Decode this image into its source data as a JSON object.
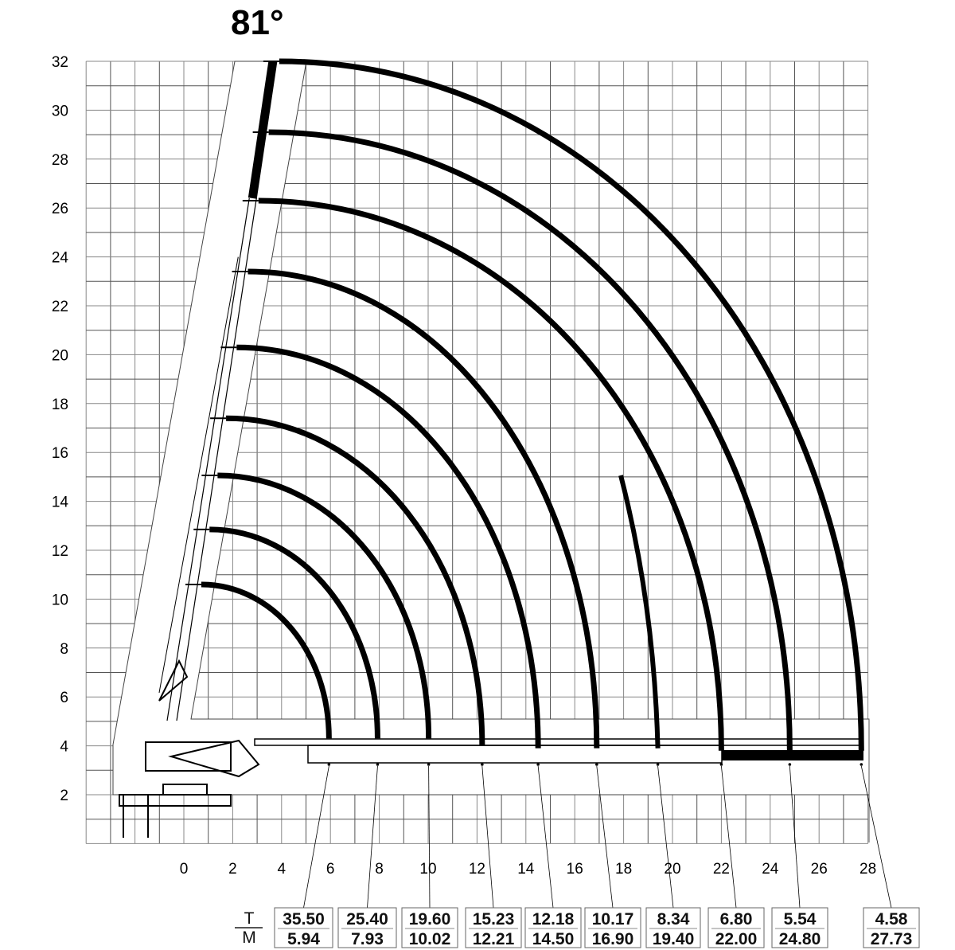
{
  "chart_data": {
    "type": "load-chart",
    "title": "81°",
    "xlim": [
      -4,
      28
    ],
    "ylim": [
      0,
      32
    ],
    "grid": true,
    "x_ticks": [
      "0",
      "2",
      "4",
      "6",
      "8",
      "10",
      "12",
      "14",
      "16",
      "18",
      "20",
      "22",
      "24",
      "26",
      "28"
    ],
    "y_ticks": [
      "2",
      "4",
      "6",
      "8",
      "10",
      "12",
      "14",
      "16",
      "18",
      "20",
      "22",
      "24",
      "26",
      "28",
      "30",
      "32"
    ],
    "row_labels": {
      "load": "T",
      "radius": "M"
    },
    "load_points": [
      {
        "t": "35.50",
        "m": "5.94"
      },
      {
        "t": "25.40",
        "m": "7.93"
      },
      {
        "t": "19.60",
        "m": "10.02"
      },
      {
        "t": "15.23",
        "m": "12.21"
      },
      {
        "t": "12.18",
        "m": "14.50"
      },
      {
        "t": "10.17",
        "m": "16.90"
      },
      {
        "t": "8.34",
        "m": "19.40"
      },
      {
        "t": "6.80",
        "m": "22.00"
      },
      {
        "t": "5.54",
        "m": "24.80"
      },
      {
        "t": "4.58",
        "m": "27.73"
      }
    ],
    "boom_tip_heights": [
      10.6,
      12.85,
      15.06,
      17.4,
      20.3,
      23.4,
      26.3,
      29.1,
      32
    ]
  }
}
